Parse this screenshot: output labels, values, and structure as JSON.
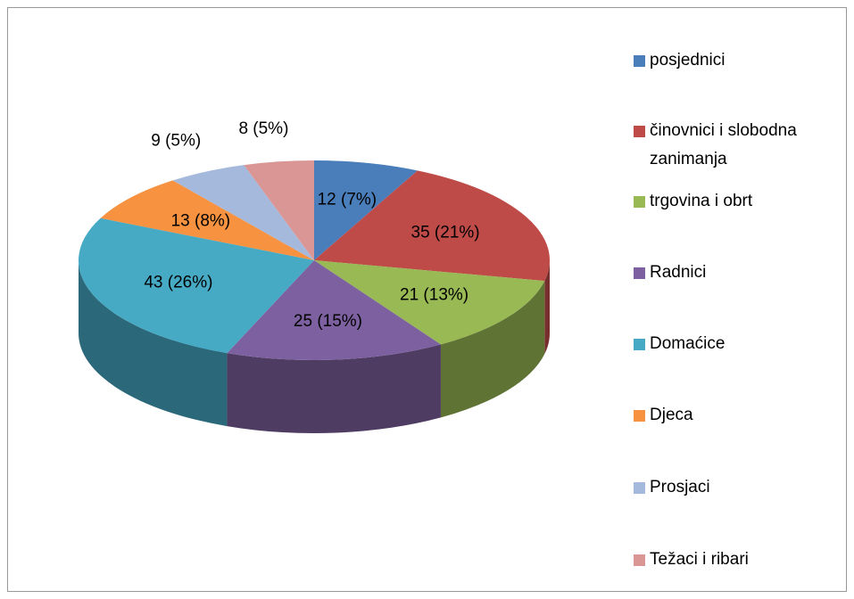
{
  "chart_data": {
    "type": "pie",
    "categories": [
      "posjednici",
      "činovnici i slobodna zanimanja",
      "trgovina i obrt",
      "Radnici",
      "Domaćice",
      "Djeca",
      "Prosjaci",
      "Težaci i ribari"
    ],
    "values": [
      12,
      35,
      21,
      25,
      43,
      13,
      9,
      8
    ],
    "value_labels": [
      "12 (7%)",
      "35 (21%)",
      "21 (13%)",
      "25 (15%)",
      "43 (26%)",
      "13 (8%)",
      "9 (5%)",
      "8 (5%)"
    ],
    "colors": [
      "#4a7ebb",
      "#be4b48",
      "#98b954",
      "#7d60a0",
      "#46aac5",
      "#f69240",
      "#a5b9dd",
      "#d99694"
    ],
    "legend": "right"
  }
}
